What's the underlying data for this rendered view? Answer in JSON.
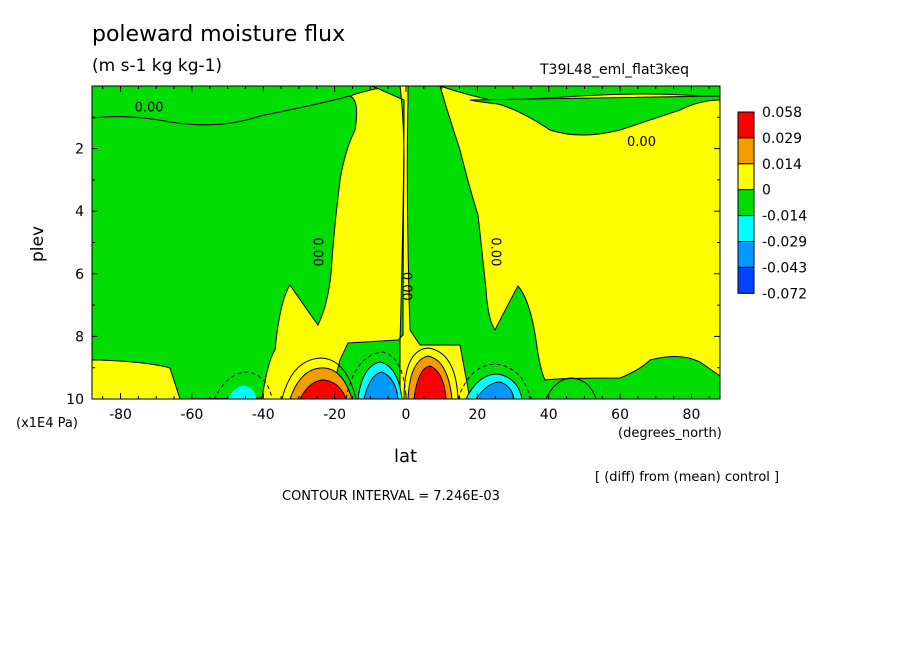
{
  "chart_data": {
    "type": "heatmap",
    "title": "poleward moisture flux",
    "units": "(m s-1 kg kg-1)",
    "run_name": "T39L48_eml_flat3keq",
    "xlabel": "lat",
    "x_units": "(degrees_north)",
    "ylabel": "plev",
    "y_units": "(x1E4 Pa)",
    "x_range": [
      -88,
      88
    ],
    "y_range": [
      0,
      10
    ],
    "y_reversed": true,
    "x_ticks": [
      "-80",
      "-60",
      "-40",
      "-20",
      "0",
      "20",
      "40",
      "60",
      "80"
    ],
    "x_tick_values": [
      -80,
      -60,
      -40,
      -20,
      0,
      20,
      40,
      60,
      80
    ],
    "y_ticks": [
      "2",
      "4",
      "6",
      "8",
      "10"
    ],
    "y_tick_values": [
      2,
      4,
      6,
      8,
      10
    ],
    "colorbar": {
      "levels": [
        "0.058",
        "0.029",
        "0.014",
        "0",
        "-0.014",
        "-0.029",
        "-0.043",
        "-0.072"
      ],
      "colors": [
        "#ff0000",
        "#f49b00",
        "#ffff00",
        "#00dd00",
        "#00ffff",
        "#0099ff",
        "#0044ff"
      ]
    },
    "contour_labels": [
      {
        "text": "0.00",
        "lat": -72,
        "plev": 0.7,
        "rotate": 0
      },
      {
        "text": "0.00",
        "lat": 66,
        "plev": 1.8,
        "rotate": 0
      },
      {
        "text": "0.00",
        "lat": -25,
        "plev": 5.3,
        "rotate": 90
      },
      {
        "text": "0.00",
        "lat": 0,
        "plev": 6.4,
        "rotate": 90
      },
      {
        "text": "0.00",
        "lat": 25,
        "plev": 5.3,
        "rotate": 90
      }
    ],
    "regions": [
      {
        "sign": "negative",
        "level": "-0.014",
        "lat_range": [
          -62,
          -32
        ],
        "plev_range": [
          1,
          9
        ]
      },
      {
        "sign": "positive",
        "level": "0",
        "lat_range": [
          -42,
          -1
        ],
        "plev_range": [
          0,
          8.8
        ]
      },
      {
        "sign": "negative",
        "level": "-0.014",
        "lat_range": [
          -1,
          17
        ],
        "plev_range": [
          0,
          8.8
        ]
      },
      {
        "sign": "positive",
        "level": "0",
        "lat_range": [
          17,
          53
        ],
        "plev_range": [
          0,
          8.5
        ]
      },
      {
        "sign": "positive",
        "level": "0.029",
        "lat_range": [
          -34,
          -14
        ],
        "plev_range": [
          9.2,
          10
        ]
      },
      {
        "sign": "positive",
        "level": "0.058",
        "lat_range": [
          2,
          11
        ],
        "plev_range": [
          9.0,
          10
        ]
      },
      {
        "sign": "negative",
        "level": "-0.043",
        "lat_range": [
          -13,
          -1
        ],
        "plev_range": [
          9.2,
          10
        ]
      },
      {
        "sign": "negative",
        "level": "-0.043",
        "lat_range": [
          15,
          31
        ],
        "plev_range": [
          9.3,
          10
        ]
      }
    ]
  },
  "annotations": {
    "diff_note": "[ (diff) from (mean) control ]",
    "contour_interval": "CONTOUR INTERVAL = 7.246E-03"
  }
}
